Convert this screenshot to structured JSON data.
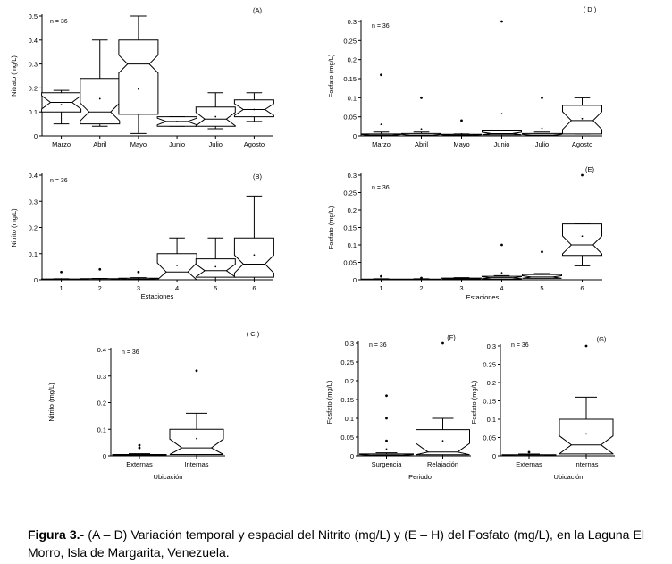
{
  "chart_data": [
    {
      "type": "boxplot",
      "panel": "(A)",
      "n_label": "n = 36",
      "ylabel": "Nitrato (mg/L)",
      "xlabel": "",
      "ylim": [
        0,
        0.5
      ],
      "yticks": [
        "0",
        "0.1",
        "0.2",
        "0.3",
        "0.4",
        "0.5"
      ],
      "categories": [
        "Marzo",
        "Abril",
        "Mayo",
        "Junio",
        "Julio",
        "Agosto"
      ],
      "boxes": [
        {
          "min": 0.05,
          "q1": 0.1,
          "median": 0.14,
          "q3": 0.18,
          "max": 0.19,
          "mean": 0.13,
          "outliers": []
        },
        {
          "min": 0.04,
          "q1": 0.05,
          "median": 0.1,
          "q3": 0.24,
          "max": 0.4,
          "mean": 0.155,
          "outliers": []
        },
        {
          "min": 0.01,
          "q1": 0.09,
          "median": 0.3,
          "q3": 0.4,
          "max": 0.5,
          "mean": 0.195,
          "outliers": []
        },
        {
          "min": 0.04,
          "q1": 0.04,
          "median": 0.06,
          "q3": 0.08,
          "max": 0.08,
          "mean": 0.06,
          "outliers": []
        },
        {
          "min": 0.03,
          "q1": 0.04,
          "median": 0.07,
          "q3": 0.12,
          "max": 0.18,
          "mean": 0.08,
          "outliers": []
        },
        {
          "min": 0.06,
          "q1": 0.08,
          "median": 0.11,
          "q3": 0.15,
          "max": 0.18,
          "mean": 0.11,
          "outliers": []
        }
      ]
    },
    {
      "type": "boxplot",
      "panel": "( D )",
      "n_label": "n = 36",
      "ylabel": "Fosfato (mg/L)",
      "xlabel": "",
      "ylim": [
        0,
        0.3
      ],
      "yticks": [
        "0",
        "0.05",
        "0.1",
        "0.15",
        "0.2",
        "0.25",
        "0.3"
      ],
      "categories": [
        "Marzo",
        "Abril",
        "Mayo",
        "Junio",
        "Julio",
        "Agosto"
      ],
      "boxes": [
        {
          "min": 0.0,
          "q1": 0.0,
          "median": 0.002,
          "q3": 0.005,
          "max": 0.01,
          "mean": 0.03,
          "outliers": [
            0.16
          ]
        },
        {
          "min": 0.0,
          "q1": 0.0,
          "median": 0.002,
          "q3": 0.006,
          "max": 0.01,
          "mean": 0.018,
          "outliers": [
            0.1
          ]
        },
        {
          "min": 0.0,
          "q1": 0.0,
          "median": 0.002,
          "q3": 0.004,
          "max": 0.005,
          "mean": 0.005,
          "outliers": [
            0.04
          ]
        },
        {
          "min": 0.0,
          "q1": 0.003,
          "median": 0.006,
          "q3": 0.013,
          "max": 0.015,
          "mean": 0.058,
          "outliers": [
            0.3
          ]
        },
        {
          "min": 0.0,
          "q1": 0.0,
          "median": 0.002,
          "q3": 0.006,
          "max": 0.01,
          "mean": 0.02,
          "outliers": [
            0.1
          ]
        },
        {
          "min": 0.005,
          "q1": 0.005,
          "median": 0.04,
          "q3": 0.08,
          "max": 0.1,
          "mean": 0.045,
          "outliers": []
        }
      ]
    },
    {
      "type": "boxplot",
      "panel": "(B)",
      "n_label": "n = 36",
      "ylabel": "Nitrito (mg/L)",
      "xlabel": "Estaciones",
      "ylim": [
        0,
        0.4
      ],
      "yticks": [
        "0",
        "0.1",
        "0.2",
        "0.3",
        "0.4"
      ],
      "categories": [
        "1",
        "2",
        "3",
        "4",
        "5",
        "6"
      ],
      "boxes": [
        {
          "min": 0.0,
          "q1": 0.0,
          "median": 0.001,
          "q3": 0.003,
          "max": 0.004,
          "mean": 0.003,
          "outliers": [
            0.03
          ]
        },
        {
          "min": 0.0,
          "q1": 0.0,
          "median": 0.001,
          "q3": 0.004,
          "max": 0.005,
          "mean": 0.004,
          "outliers": [
            0.04
          ]
        },
        {
          "min": 0.0,
          "q1": 0.0,
          "median": 0.002,
          "q3": 0.006,
          "max": 0.008,
          "mean": 0.006,
          "outliers": [
            0.03
          ]
        },
        {
          "min": 0.0,
          "q1": 0.0,
          "median": 0.03,
          "q3": 0.1,
          "max": 0.16,
          "mean": 0.055,
          "outliers": []
        },
        {
          "min": 0.0,
          "q1": 0.01,
          "median": 0.035,
          "q3": 0.08,
          "max": 0.16,
          "mean": 0.05,
          "outliers": []
        },
        {
          "min": 0.0,
          "q1": 0.01,
          "median": 0.06,
          "q3": 0.16,
          "max": 0.32,
          "mean": 0.095,
          "outliers": []
        }
      ]
    },
    {
      "type": "boxplot",
      "panel": "(E)",
      "n_label": "n = 36",
      "ylabel": "Fosfato (mg/L)",
      "xlabel": "Estaciones",
      "ylim": [
        0,
        0.3
      ],
      "yticks": [
        "0",
        "0.05",
        "0.1",
        "0.15",
        "0.2",
        "0.25",
        "0.3"
      ],
      "categories": [
        "1",
        "2",
        "3",
        "4",
        "5",
        "6"
      ],
      "boxes": [
        {
          "min": 0.0,
          "q1": 0.0,
          "median": 0.001,
          "q3": 0.002,
          "max": 0.003,
          "mean": 0.002,
          "outliers": [
            0.01
          ]
        },
        {
          "min": 0.0,
          "q1": 0.0,
          "median": 0.001,
          "q3": 0.002,
          "max": 0.003,
          "mean": 0.002,
          "outliers": [
            0.005
          ]
        },
        {
          "min": 0.0,
          "q1": 0.002,
          "median": 0.003,
          "q3": 0.005,
          "max": 0.006,
          "mean": 0.004,
          "outliers": []
        },
        {
          "min": 0.0,
          "q1": 0.002,
          "median": 0.006,
          "q3": 0.01,
          "max": 0.012,
          "mean": 0.02,
          "outliers": [
            0.1
          ]
        },
        {
          "min": 0.0,
          "q1": 0.004,
          "median": 0.008,
          "q3": 0.015,
          "max": 0.018,
          "mean": 0.015,
          "outliers": [
            0.08
          ]
        },
        {
          "min": 0.04,
          "q1": 0.07,
          "median": 0.1,
          "q3": 0.16,
          "max": 0.16,
          "mean": 0.125,
          "outliers": [
            0.3
          ]
        }
      ]
    },
    {
      "type": "boxplot",
      "panel": "( C )",
      "n_label": "n = 36",
      "ylabel": "Nitrito (mg/L)",
      "xlabel": "Ubicación",
      "ylim": [
        0,
        0.4
      ],
      "yticks": [
        "0",
        "0.1",
        "0.2",
        "0.3",
        "0.4"
      ],
      "categories": [
        "Externas",
        "Internas"
      ],
      "boxes": [
        {
          "min": 0.0,
          "q1": 0.0,
          "median": 0.002,
          "q3": 0.005,
          "max": 0.008,
          "mean": 0.004,
          "outliers": [
            0.03,
            0.04
          ]
        },
        {
          "min": 0.0,
          "q1": 0.005,
          "median": 0.03,
          "q3": 0.1,
          "max": 0.16,
          "mean": 0.065,
          "outliers": [
            0.32
          ]
        }
      ]
    },
    {
      "type": "boxplot",
      "panel": "(F)",
      "n_label": "n = 36",
      "ylabel": "Fosfato (mg/L)",
      "xlabel": "Periodo",
      "ylim": [
        0,
        0.3
      ],
      "yticks": [
        "0",
        "0.05",
        "0.1",
        "0.15",
        "0.2",
        "0.25",
        "0.3"
      ],
      "categories": [
        "Surgencia",
        "Relajación"
      ],
      "boxes": [
        {
          "min": 0.0,
          "q1": 0.0,
          "median": 0.002,
          "q3": 0.005,
          "max": 0.008,
          "mean": 0.018,
          "outliers": [
            0.16,
            0.1,
            0.04
          ]
        },
        {
          "min": 0.0,
          "q1": 0.003,
          "median": 0.01,
          "q3": 0.07,
          "max": 0.1,
          "mean": 0.04,
          "outliers": [
            0.3
          ]
        }
      ]
    },
    {
      "type": "boxplot",
      "panel": "(G)",
      "n_label": "n = 36",
      "ylabel": "Fosfato (mg/L)",
      "xlabel": "Ubicación",
      "ylim": [
        0,
        0.3
      ],
      "yticks": [
        "0",
        "0.05",
        "0.1",
        "0.15",
        "0.2",
        "0.25",
        "0.3"
      ],
      "categories": [
        "Externas",
        "Internas"
      ],
      "boxes": [
        {
          "min": 0.0,
          "q1": 0.0,
          "median": 0.001,
          "q3": 0.003,
          "max": 0.005,
          "mean": 0.003,
          "outliers": [
            0.01
          ]
        },
        {
          "min": 0.0,
          "q1": 0.005,
          "median": 0.03,
          "q3": 0.1,
          "max": 0.16,
          "mean": 0.06,
          "outliers": [
            0.3
          ]
        }
      ]
    }
  ],
  "caption": {
    "label": "Figura 3.-",
    "text": " (A – D) Variación temporal y espacial del Nitrito (mg/L) y (E – H) del Fosfato (mg/L), en la Laguna El Morro, Isla de Margarita, Venezuela."
  }
}
